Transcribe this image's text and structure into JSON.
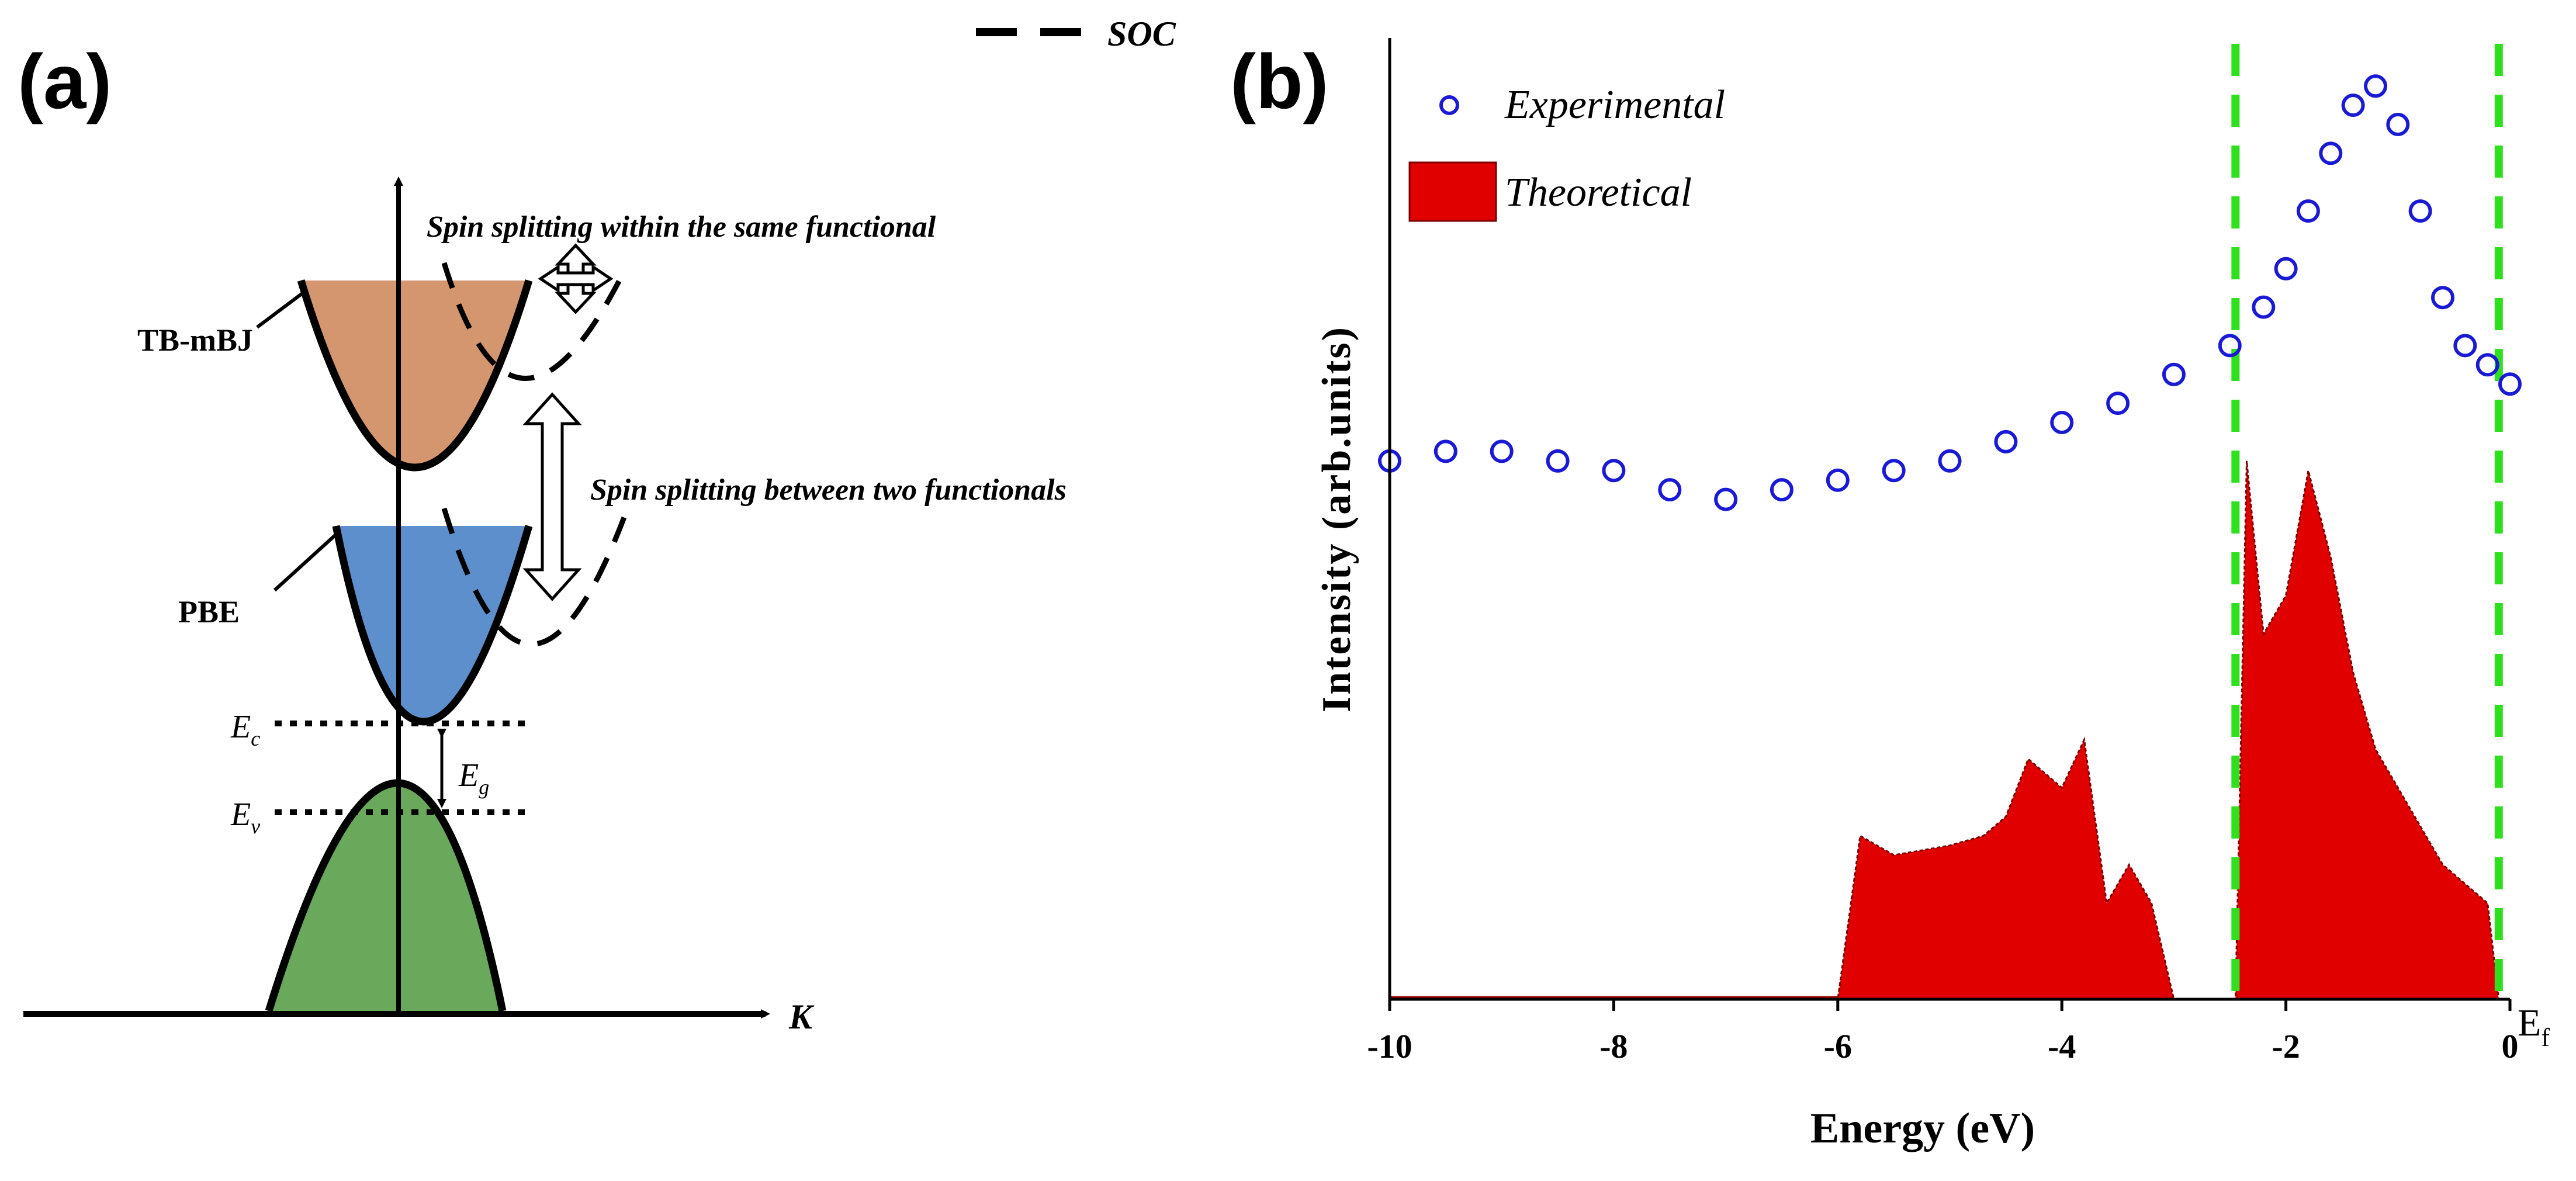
{
  "panel_a": {
    "label": "(a)",
    "legend_soc": "SOC",
    "band_tbmbj": "TB-mBJ",
    "band_pbe": "PBE",
    "ann_within": "Spin splitting within the same functional",
    "ann_between": "Spin splitting between two functionals",
    "ec_label": "E",
    "ec_sub": "c",
    "ev_label": "E",
    "ev_sub": "v",
    "eg_label": "E",
    "eg_sub": "g",
    "k_axis": "K",
    "colors": {
      "tbmbj_fill": "#cf8b5f",
      "pbe_fill": "#4d83c8",
      "valence_fill": "#5aa04a",
      "curve": "#000000"
    }
  },
  "panel_b": {
    "label": "(b)",
    "x_axis_label": "Energy (eV)",
    "y_axis_label": "Intensity (arb.units)",
    "ef_label": "E",
    "ef_sub": "f",
    "colors": {
      "experimental": "#1a1ad4",
      "theoretical": "#e00000",
      "marker_lines": "#2fe01f"
    }
  },
  "chart_data": {
    "type": "line",
    "title": "",
    "xlabel": "Energy (eV)",
    "ylabel": "Intensity (arb.units)",
    "xlim": [
      -10,
      0
    ],
    "ylim": [
      0,
      1
    ],
    "xticks": [
      "-10",
      "-8",
      "-6",
      "-4",
      "-2",
      "0"
    ],
    "legend": [
      "Experimental",
      "Theoretical"
    ],
    "vertical_dashed_lines_x": [
      -2.45,
      -0.1
    ],
    "series": [
      {
        "name": "Experimental",
        "style": "open-circle markers",
        "x": [
          -10.0,
          -9.5,
          -9.0,
          -8.5,
          -8.0,
          -7.5,
          -7.0,
          -6.5,
          -6.0,
          -5.5,
          -5.0,
          -4.5,
          -4.0,
          -3.5,
          -3.0,
          -2.5,
          -2.2,
          -2.0,
          -1.8,
          -1.6,
          -1.4,
          -1.2,
          -1.0,
          -0.8,
          -0.6,
          -0.4,
          -0.2,
          0.0
        ],
        "values": [
          0.56,
          0.57,
          0.57,
          0.56,
          0.55,
          0.53,
          0.52,
          0.53,
          0.54,
          0.55,
          0.56,
          0.58,
          0.6,
          0.62,
          0.65,
          0.68,
          0.72,
          0.76,
          0.82,
          0.88,
          0.93,
          0.95,
          0.91,
          0.82,
          0.73,
          0.68,
          0.66,
          0.64
        ]
      },
      {
        "name": "Theoretical",
        "style": "filled area (histogram-like)",
        "x": [
          -10.0,
          -6.0,
          -5.8,
          -5.5,
          -5.0,
          -4.7,
          -4.5,
          -4.3,
          -4.0,
          -3.8,
          -3.6,
          -3.4,
          -3.2,
          -3.0,
          -2.45,
          -2.35,
          -2.2,
          -2.0,
          -1.8,
          -1.6,
          -1.4,
          -1.2,
          -1.0,
          -0.8,
          -0.6,
          -0.4,
          -0.2,
          -0.1
        ],
        "values": [
          0.0,
          0.0,
          0.17,
          0.15,
          0.16,
          0.17,
          0.19,
          0.25,
          0.22,
          0.27,
          0.1,
          0.14,
          0.1,
          0.0,
          0.0,
          0.56,
          0.38,
          0.42,
          0.55,
          0.46,
          0.34,
          0.26,
          0.22,
          0.18,
          0.14,
          0.12,
          0.1,
          0.0
        ]
      }
    ]
  }
}
